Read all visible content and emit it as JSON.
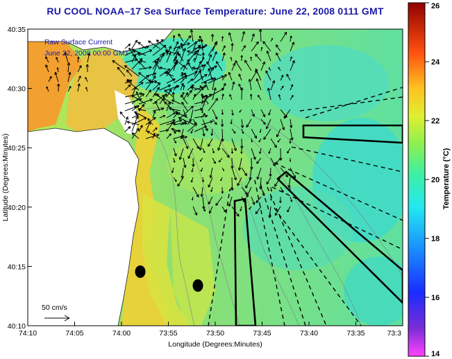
{
  "title": "RU COOL  NOAA–17  Sea Surface Temperature:  June 22, 2008 0111 GMT",
  "legend": {
    "line1": "Raw Surface Current",
    "line2": "June 22, 2008 00:00 GMT",
    "scale_label": "50 cm/s"
  },
  "axes": {
    "xlabel": "Longitude (Degrees:Minutes)",
    "ylabel": "Latitude (Degrees:Minutes)",
    "xticks": [
      "74:10",
      "74:05",
      "74:00",
      "73:55",
      "73:50",
      "73:45",
      "73:40",
      "73:35",
      "73:3"
    ],
    "yticks": [
      "40:35",
      "40:30",
      "40:25",
      "40:20",
      "40:15",
      "40:10"
    ]
  },
  "colorbar": {
    "label": "Temperature (°C)",
    "ticks": [
      "26",
      "24",
      "22",
      "20",
      "18",
      "16",
      "14"
    ],
    "min": 14,
    "max": 26
  },
  "colors": {
    "title": "#1a1aa8",
    "land": "#ffffff",
    "warm": "#f5a623",
    "mid": "#9fe05a",
    "cool": "#33dccc"
  }
}
